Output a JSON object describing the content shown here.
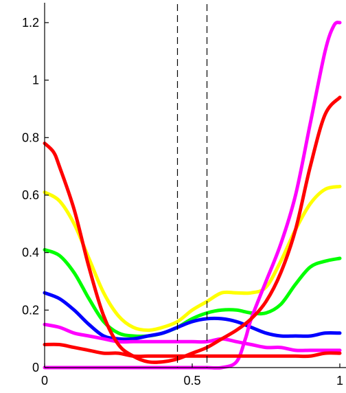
{
  "chart_data": {
    "type": "line",
    "title": "",
    "xlabel": "",
    "ylabel": "",
    "xlim": [
      0,
      1
    ],
    "ylim": [
      0,
      1.25
    ],
    "x_ticks": [
      0,
      0.5,
      1
    ],
    "x_tick_labels": [
      "0",
      "0.5",
      "1"
    ],
    "y_ticks": [
      0,
      0.2,
      0.4,
      0.6,
      0.8,
      1,
      1.2
    ],
    "y_tick_labels": [
      "0",
      "0.2",
      "0.4",
      "0.6",
      "0.8",
      "1",
      "1.2"
    ],
    "grid": false,
    "legend": "none",
    "reference_lines": [
      {
        "x": 0.45,
        "style": "dashed",
        "color": "#000000"
      },
      {
        "x": 0.55,
        "style": "dashed",
        "color": "#000000"
      }
    ],
    "series": [
      {
        "color": "#ffff00",
        "x": [
          0,
          0.05,
          0.1,
          0.15,
          0.2,
          0.25,
          0.3,
          0.35,
          0.4,
          0.45,
          0.5,
          0.55,
          0.6,
          0.65,
          0.7,
          0.75,
          0.8,
          0.85,
          0.9,
          0.95,
          1
        ],
        "values": [
          0.61,
          0.58,
          0.5,
          0.38,
          0.26,
          0.18,
          0.14,
          0.13,
          0.14,
          0.16,
          0.2,
          0.23,
          0.26,
          0.26,
          0.26,
          0.28,
          0.37,
          0.48,
          0.57,
          0.62,
          0.63
        ]
      },
      {
        "color": "#00ff00",
        "x": [
          0,
          0.05,
          0.1,
          0.15,
          0.2,
          0.25,
          0.3,
          0.35,
          0.4,
          0.45,
          0.5,
          0.55,
          0.6,
          0.65,
          0.7,
          0.75,
          0.8,
          0.85,
          0.9,
          0.95,
          1
        ],
        "values": [
          0.41,
          0.39,
          0.33,
          0.24,
          0.16,
          0.12,
          0.11,
          0.11,
          0.12,
          0.14,
          0.17,
          0.19,
          0.2,
          0.2,
          0.19,
          0.19,
          0.22,
          0.29,
          0.35,
          0.37,
          0.38
        ]
      },
      {
        "color": "#0000ff",
        "x": [
          0,
          0.05,
          0.1,
          0.15,
          0.2,
          0.25,
          0.3,
          0.35,
          0.4,
          0.45,
          0.5,
          0.55,
          0.6,
          0.65,
          0.7,
          0.75,
          0.8,
          0.85,
          0.9,
          0.95,
          1
        ],
        "values": [
          0.26,
          0.24,
          0.2,
          0.15,
          0.11,
          0.1,
          0.1,
          0.11,
          0.12,
          0.14,
          0.16,
          0.17,
          0.17,
          0.16,
          0.14,
          0.12,
          0.11,
          0.11,
          0.11,
          0.12,
          0.12
        ]
      },
      {
        "color": "#ff00ff",
        "x": [
          0,
          0.05,
          0.1,
          0.15,
          0.2,
          0.25,
          0.3,
          0.35,
          0.4,
          0.45,
          0.5,
          0.55,
          0.6,
          0.65,
          0.7,
          0.75,
          0.8,
          0.85,
          0.9,
          0.95,
          1
        ],
        "values": [
          0.15,
          0.14,
          0.12,
          0.11,
          0.1,
          0.09,
          0.09,
          0.09,
          0.09,
          0.09,
          0.09,
          0.09,
          0.1,
          0.09,
          0.08,
          0.07,
          0.07,
          0.06,
          0.06,
          0.06,
          0.06
        ]
      },
      {
        "color": "#ff00ff",
        "x": [
          0,
          0.05,
          0.1,
          0.15,
          0.2,
          0.25,
          0.3,
          0.35,
          0.4,
          0.45,
          0.5,
          0.55,
          0.6,
          0.65,
          0.68,
          0.7,
          0.75,
          0.8,
          0.85,
          0.9,
          0.95,
          0.98,
          1
        ],
        "values": [
          0,
          0,
          0,
          0,
          0,
          0,
          0,
          0,
          0,
          0,
          0,
          0,
          0,
          0.02,
          0.1,
          0.17,
          0.3,
          0.43,
          0.6,
          0.85,
          1.1,
          1.19,
          1.2
        ]
      },
      {
        "color": "#ff0000",
        "x": [
          0,
          0.05,
          0.1,
          0.15,
          0.2,
          0.25,
          0.3,
          0.35,
          0.4,
          0.45,
          0.5,
          0.55,
          0.6,
          0.65,
          0.7,
          0.75,
          0.8,
          0.85,
          0.9,
          0.95,
          1
        ],
        "values": [
          0.08,
          0.08,
          0.07,
          0.06,
          0.05,
          0.05,
          0.04,
          0.04,
          0.04,
          0.04,
          0.04,
          0.04,
          0.04,
          0.04,
          0.04,
          0.04,
          0.04,
          0.04,
          0.04,
          0.05,
          0.05
        ]
      },
      {
        "color": "#ff0000",
        "x": [
          0,
          0.03,
          0.05,
          0.1,
          0.15,
          0.2,
          0.25,
          0.3,
          0.35,
          0.4,
          0.45,
          0.5,
          0.55,
          0.6,
          0.65,
          0.7,
          0.75,
          0.8,
          0.85,
          0.9,
          0.95,
          1
        ],
        "values": [
          0.78,
          0.75,
          0.7,
          0.55,
          0.35,
          0.18,
          0.08,
          0.04,
          0.02,
          0.02,
          0.03,
          0.05,
          0.07,
          0.1,
          0.13,
          0.17,
          0.23,
          0.33,
          0.48,
          0.7,
          0.88,
          0.94
        ]
      }
    ]
  }
}
